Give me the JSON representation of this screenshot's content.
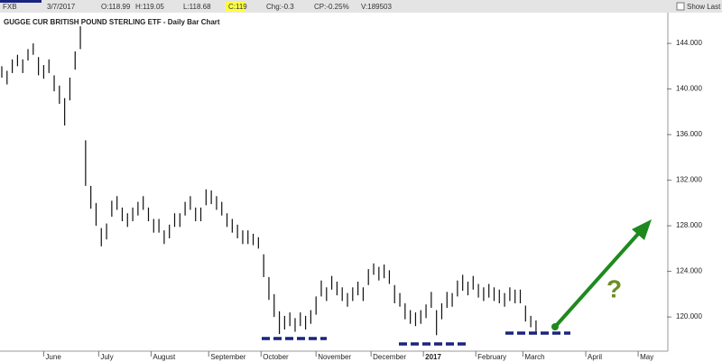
{
  "header": {
    "symbol": "FXB",
    "date": "3/7/2017",
    "open": "O:118.99",
    "high": "H:119.05",
    "low": "L:118.68",
    "close": "C:119",
    "change": "Chg:-0.3",
    "change_pct": "CP:-0.25%",
    "volume": "V:189503",
    "show_last": "Show Last"
  },
  "chart_data": {
    "type": "ohlc",
    "title": "GUGGE CUR BRITISH POUND STERLING ETF - Daily Bar Chart",
    "color": "#111111",
    "x": [
      0,
      2,
      4,
      6,
      8,
      10,
      12,
      14,
      16,
      18,
      20,
      22,
      24,
      26,
      28,
      30,
      32,
      34,
      36,
      38,
      40,
      42,
      44,
      46,
      48,
      50,
      52,
      54,
      56,
      58,
      60,
      62,
      64,
      66,
      68,
      70,
      72,
      74,
      76,
      78,
      80,
      82,
      84,
      86,
      88,
      90,
      92,
      94,
      96,
      98,
      100,
      102,
      104,
      106,
      108,
      110,
      112,
      114,
      116,
      118,
      120,
      122,
      124,
      126,
      128,
      130,
      132,
      134,
      136,
      138,
      140,
      142,
      144,
      146,
      148,
      150,
      152,
      154,
      156,
      158,
      160,
      162,
      164,
      166,
      168,
      170,
      172,
      174,
      176,
      178,
      180,
      182,
      184,
      186,
      188,
      190,
      192,
      194,
      196,
      198,
      200,
      202,
      204
    ],
    "high": [
      142.0,
      141.6,
      142.6,
      143.0,
      142.6,
      143.5,
      144.0,
      142.8,
      142.1,
      142.6,
      141.2,
      140.3,
      139.2,
      141.0,
      143.3,
      145.5,
      135.5,
      131.5,
      130.0,
      127.8,
      128.2,
      130.2,
      130.6,
      129.6,
      129.1,
      129.6,
      130.1,
      130.6,
      129.6,
      128.6,
      128.6,
      127.6,
      128.1,
      129.1,
      129.1,
      130.1,
      130.6,
      129.6,
      129.6,
      131.2,
      131.1,
      130.6,
      130.1,
      129.1,
      128.6,
      128.1,
      127.6,
      127.6,
      127.3,
      127.0,
      125.5,
      123.5,
      122.0,
      120.5,
      120.1,
      120.4,
      119.9,
      120.4,
      120.1,
      120.6,
      121.8,
      123.2,
      122.6,
      123.6,
      123.1,
      122.6,
      122.1,
      122.6,
      123.1,
      122.6,
      124.2,
      124.7,
      124.4,
      124.6,
      124.1,
      122.8,
      122.1,
      121.2,
      120.6,
      120.4,
      120.6,
      121.1,
      122.2,
      120.6,
      121.2,
      122.2,
      122.1,
      123.2,
      123.7,
      123.1,
      123.6,
      122.9,
      122.6,
      122.9,
      122.6,
      122.4,
      122.1,
      122.6,
      122.4,
      122.4,
      121.0,
      120.1,
      119.7
    ],
    "low": [
      141.0,
      140.4,
      141.4,
      142.0,
      141.4,
      142.5,
      143.0,
      141.2,
      140.9,
      141.4,
      139.8,
      138.7,
      136.8,
      139.0,
      141.7,
      143.5,
      131.5,
      129.5,
      128.0,
      126.2,
      126.8,
      128.8,
      129.4,
      128.4,
      127.9,
      128.4,
      128.9,
      129.4,
      128.4,
      127.4,
      127.4,
      126.4,
      126.9,
      127.9,
      127.9,
      128.9,
      129.4,
      128.4,
      128.4,
      129.8,
      129.9,
      129.4,
      128.9,
      127.9,
      127.4,
      126.9,
      126.4,
      126.4,
      126.3,
      126.0,
      123.5,
      121.5,
      120.0,
      118.5,
      118.9,
      119.2,
      118.7,
      119.2,
      118.9,
      119.4,
      120.2,
      121.8,
      121.4,
      122.4,
      121.9,
      121.4,
      120.9,
      121.4,
      121.9,
      121.4,
      122.8,
      123.7,
      123.2,
      123.4,
      122.9,
      121.2,
      120.9,
      119.8,
      119.4,
      119.2,
      119.4,
      119.9,
      120.8,
      118.4,
      119.8,
      120.8,
      120.9,
      121.8,
      122.3,
      121.9,
      122.4,
      121.7,
      121.4,
      121.7,
      121.4,
      121.2,
      120.9,
      121.4,
      121.2,
      121.2,
      119.6,
      119.1,
      118.7
    ],
    "xlim": [
      0,
      254
    ],
    "xticks": [
      {
        "value": 16,
        "label": "June"
      },
      {
        "value": 37,
        "label": "July"
      },
      {
        "value": 57,
        "label": "August"
      },
      {
        "value": 79,
        "label": "September"
      },
      {
        "value": 99,
        "label": "October"
      },
      {
        "value": 120,
        "label": "November"
      },
      {
        "value": 141,
        "label": "December"
      },
      {
        "value": 161,
        "label": "2017"
      },
      {
        "value": 181,
        "label": "February"
      },
      {
        "value": 199,
        "label": "March"
      },
      {
        "value": 223,
        "label": "April"
      },
      {
        "value": 243,
        "label": "May"
      }
    ],
    "ylim": [
      117,
      146.7
    ],
    "yticks": [
      {
        "value": 120,
        "label": "120.000"
      },
      {
        "value": 124,
        "label": "124.000"
      },
      {
        "value": 128,
        "label": "128.000"
      },
      {
        "value": 132,
        "label": "132.000"
      },
      {
        "value": 136,
        "label": "136.000"
      },
      {
        "value": 140,
        "label": "140.000"
      },
      {
        "value": 144,
        "label": "144.000"
      }
    ],
    "grid": false
  }
}
